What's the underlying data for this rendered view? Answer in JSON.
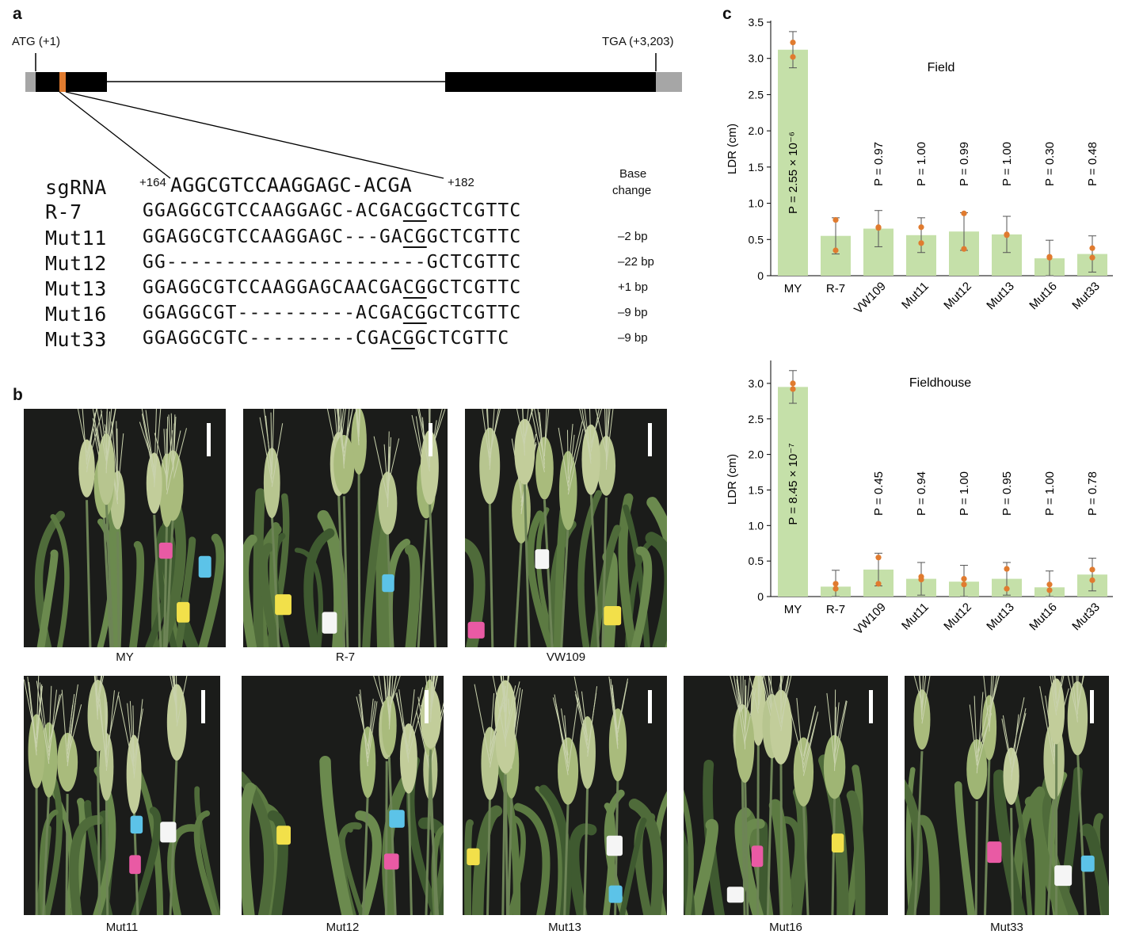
{
  "panels": {
    "a": "a",
    "b": "b",
    "c": "c"
  },
  "gene": {
    "start_label": "ATG (+1)",
    "end_label": "TGA (+3,203)"
  },
  "alignment": {
    "base_change_header": [
      "Base",
      "change"
    ],
    "sgRNA": {
      "name": "sgRNA",
      "pos_start": "+164",
      "sequence": "AGGCGTCCAAGGAGC-ACGA",
      "pos_end": "+182"
    },
    "rows": [
      {
        "name": "R-7",
        "prefix": "GGAGGCGTCCAAGGAGC-ACGA",
        "pam": "CG",
        "suffix": "GCTCGTTC",
        "change": ""
      },
      {
        "name": "Mut11",
        "prefix": "GGAGGCGTCCAAGGAGC---GA",
        "pam": "CG",
        "suffix": "GCTCGTTC",
        "change": "–2 bp"
      },
      {
        "name": "Mut12",
        "prefix": "GG--------------------",
        "pam": "--",
        "suffix": "GCTCGTTC",
        "change": "–22 bp"
      },
      {
        "name": "Mut13",
        "prefix": "GGAGGCGTCCAAGGAGCAACGA",
        "pam": "CG",
        "suffix": "GCTCGTTC",
        "change": "+1 bp"
      },
      {
        "name": "Mut16",
        "prefix": "GGAGGCGT----------ACGA",
        "pam": "CG",
        "suffix": "GCTCGTTC",
        "change": "–9 bp"
      },
      {
        "name": "Mut33",
        "prefix": "GGAGGCGTC---------CGA",
        "pam": "CG",
        "suffix": "GCTCGTTC",
        "change": "–9 bp"
      }
    ]
  },
  "photos": [
    "MY",
    "R-7",
    "VW109",
    "Mut11",
    "Mut12",
    "Mut13",
    "Mut16",
    "Mut33"
  ],
  "colors": {
    "bar": "#c5e0a9",
    "dot": "#e07b2f",
    "exon": "#000000",
    "utr": "#a6a6a6",
    "target": "#e07b2f"
  },
  "chart_data": [
    {
      "type": "bar",
      "title": "Field",
      "ylabel": "LDR (cm)",
      "ylim": [
        0,
        3.5
      ],
      "yticks": [
        "0",
        "0.5",
        "1.0",
        "1.5",
        "2.0",
        "2.5",
        "3.0",
        "3.5"
      ],
      "categories": [
        "MY",
        "R-7",
        "VW109",
        "Mut11",
        "Mut12",
        "Mut13",
        "Mut16",
        "Mut33"
      ],
      "values": [
        3.12,
        0.55,
        0.65,
        0.56,
        0.61,
        0.57,
        0.24,
        0.3
      ],
      "errors": [
        0.25,
        0.25,
        0.25,
        0.24,
        0.26,
        0.25,
        0.25,
        0.25
      ],
      "points": [
        [
          3.22,
          3.02
        ],
        [
          0.77,
          0.35
        ],
        [
          0.66,
          0.67
        ],
        [
          0.67,
          0.45
        ],
        [
          0.86,
          0.37
        ],
        [
          0.57,
          0.56
        ],
        [
          0.26,
          0.25
        ],
        [
          0.38,
          0.25
        ]
      ],
      "pvalues": [
        "P = 2.55 × 10⁻⁶",
        "",
        "P = 0.97",
        "P = 1.00",
        "P = 0.99",
        "P = 1.00",
        "P = 0.30",
        "P = 0.48"
      ]
    },
    {
      "type": "bar",
      "title": "Fieldhouse",
      "ylabel": "LDR (cm)",
      "ylim": [
        0,
        3.3
      ],
      "yticks": [
        "0",
        "0.5",
        "1.0",
        "1.5",
        "2.0",
        "2.5",
        "3.0"
      ],
      "categories": [
        "MY",
        "R-7",
        "VW109",
        "Mut11",
        "Mut12",
        "Mut13",
        "Mut16",
        "Mut33"
      ],
      "values": [
        2.95,
        0.14,
        0.38,
        0.25,
        0.21,
        0.25,
        0.13,
        0.31
      ],
      "errors": [
        0.23,
        0.23,
        0.23,
        0.23,
        0.23,
        0.23,
        0.23,
        0.23
      ],
      "points": [
        [
          3.0,
          2.92
        ],
        [
          0.18,
          0.11
        ],
        [
          0.55,
          0.18
        ],
        [
          0.28,
          0.24
        ],
        [
          0.25,
          0.17
        ],
        [
          0.39,
          0.11
        ],
        [
          0.17,
          0.09
        ],
        [
          0.38,
          0.23
        ]
      ],
      "pvalues": [
        "P = 8.45 × 10⁻⁷",
        "",
        "P = 0.45",
        "P = 0.94",
        "P = 1.00",
        "P = 0.95",
        "P = 1.00",
        "P = 0.78"
      ]
    }
  ]
}
